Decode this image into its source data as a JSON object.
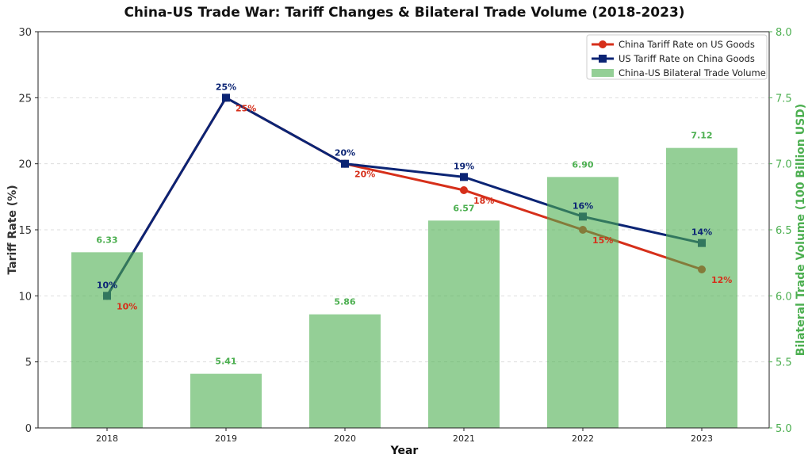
{
  "chart_data": {
    "type": "bar+line",
    "title": "China-US Trade War: Tariff Changes & Bilateral Trade Volume (2018-2023)",
    "xlabel": "Year",
    "ylabel": "Tariff Rate (%)",
    "ylabel_right": "Bilateral Trade Volume (100 Billion USD)",
    "categories": [
      "2018",
      "2019",
      "2020",
      "2021",
      "2022",
      "2023"
    ],
    "ylim": [
      0,
      30
    ],
    "yticks": [
      0,
      5,
      10,
      15,
      20,
      25,
      30
    ],
    "ylim_right": [
      5.0,
      8.0
    ],
    "yticks_right": [
      "5.0",
      "5.5",
      "6.0",
      "6.5",
      "7.0",
      "7.5",
      "8.0"
    ],
    "grid": "horizontal dashed",
    "legend_position": "top-right",
    "series": [
      {
        "name": "China Tariff Rate on US Goods",
        "type": "line",
        "marker": "circle",
        "color": "#d62f1a",
        "axis": "left",
        "values": [
          10,
          25,
          20,
          18,
          15,
          12
        ]
      },
      {
        "name": "US Tariff Rate on China Goods",
        "type": "line",
        "marker": "square",
        "color": "#0b2474",
        "axis": "left",
        "values": [
          10,
          25,
          20,
          19,
          16,
          14
        ]
      },
      {
        "name": "China-US Bilateral Trade Volume",
        "type": "bar",
        "color": "#4caf50",
        "axis": "right",
        "values": [
          6.33,
          5.41,
          5.86,
          6.57,
          6.9,
          7.12
        ]
      }
    ]
  }
}
